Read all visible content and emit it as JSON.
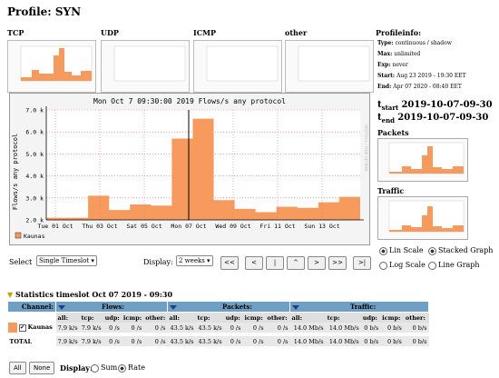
{
  "profile": {
    "title": "Profile: SYN"
  },
  "thumbs": {
    "labels": [
      "TCP",
      "UDP",
      "ICMP",
      "other"
    ]
  },
  "profileinfo": {
    "heading": "Profileinfo:",
    "type_label": "Type:",
    "type_value": "continuous / shadow",
    "max_label": "Max:",
    "max_value": "unlimited",
    "exp_label": "Exp:",
    "exp_value": "never",
    "start_label": "Start:",
    "start_value": "Aug 23 2019 - 19:30 EET",
    "end_label": "End:",
    "end_value": "Apr 07 2020 - 08:40 EET"
  },
  "times": {
    "tstart_label": "t",
    "tstart_sub": "start",
    "tstart_value": "2019-10-07-09-30",
    "tend_label": "t",
    "tend_sub": "end",
    "tend_value": "2019-10-07-09-30"
  },
  "side": {
    "packets_label": "Packets",
    "traffic_label": "Traffic"
  },
  "chart_data": {
    "type": "area",
    "title": "Mon Oct  7 09:30:00 2019 Flows/s any protocol",
    "ylabel": "Flows/s any protocol",
    "ylim": [
      2000,
      7000
    ],
    "yticks": [
      "2.0 k",
      "3.0 k",
      "4.0 k",
      "5.0 k",
      "6.0 k",
      "7.0 k"
    ],
    "xticks": [
      "Tue 01 Oct",
      "Thu 03 Oct",
      "Sat 05 Oct",
      "Mon 07 Oct",
      "Wed 09 Oct",
      "Fri 11 Oct",
      "Sun 13 Oct"
    ],
    "series": [
      {
        "name": "Kaunas",
        "color": "#f79a5e",
        "values": [
          2100,
          2100,
          3100,
          2450,
          2700,
          2650,
          5700,
          6600,
          2900,
          2500,
          2350,
          2600,
          2550,
          2800,
          3050
        ]
      }
    ],
    "cursor_label": "Mon 07 Oct",
    "watermark": "RRDTOOL / TOBI OETIKER"
  },
  "controls": {
    "select_label": "Select",
    "select_value": "Single Timeslot",
    "display_label": "Display:",
    "display_value": "2 weeks",
    "nav": [
      "<<",
      "<",
      "|",
      "^",
      ">",
      ">>",
      ">|"
    ],
    "lin_scale": "Lin Scale",
    "log_scale": "Log Scale",
    "stacked_graph": "Stacked Graph",
    "line_graph": "Line Graph"
  },
  "stats": {
    "heading": "Statistics timeslot Oct 07 2019 - 09:30",
    "channel": "Channel:",
    "flows": "Flows:",
    "packets": "Packets:",
    "traffic": "Traffic:",
    "cols": [
      "all:",
      "tcp:",
      "udp:",
      "icmp:",
      "other:"
    ],
    "row_name": "Kaunas",
    "flows_vals": [
      "7.9 k/s",
      "7.9 k/s",
      "0 /s",
      "0 /s",
      "0 /s"
    ],
    "packets_vals": [
      "43.5 k/s",
      "43.5 k/s",
      "0 /s",
      "0 /s",
      "0 /s"
    ],
    "traffic_vals": [
      "14.0 Mb/s",
      "14.0 Mb/s",
      "0 b/s",
      "0 b/s",
      "0 b/s"
    ],
    "total": "TOTAL"
  },
  "bottom": {
    "all": "All",
    "none": "None",
    "display": "Display:",
    "sum": "Sum",
    "rate": "Rate"
  }
}
